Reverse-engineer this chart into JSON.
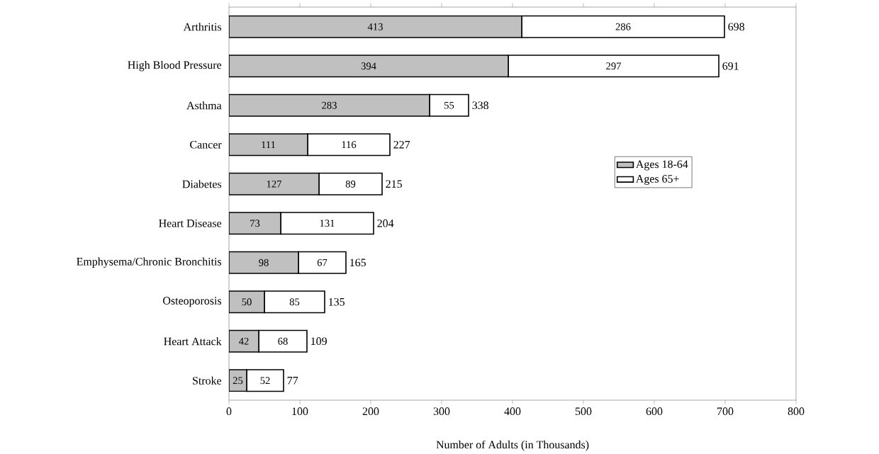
{
  "chart_data": {
    "type": "bar",
    "orientation": "horizontal",
    "stacked": true,
    "xlabel": "Number of Adults (in Thousands)",
    "categories": [
      "Arthritis",
      "High Blood Pressure",
      "Asthma",
      "Cancer",
      "Diabetes",
      "Heart Disease",
      "Emphysema/Chronic Bronchitis",
      "Osteoporosis",
      "Heart Attack",
      "Stroke"
    ],
    "series": [
      {
        "name": "Ages 18-64",
        "color": "#c0c0c0",
        "values": [
          413,
          394,
          283,
          111,
          127,
          73,
          98,
          50,
          42,
          25
        ]
      },
      {
        "name": "Ages 65+",
        "color": "#ffffff",
        "values": [
          286,
          297,
          55,
          116,
          89,
          131,
          67,
          85,
          68,
          52
        ]
      }
    ],
    "totals": [
      "698",
      "691",
      "338",
      "227",
      "215",
      "204",
      "165",
      "135",
      "109",
      "77"
    ],
    "data_labels": true,
    "xlim": [
      0,
      800
    ],
    "xticks": [
      0,
      100,
      200,
      300,
      400,
      500,
      600,
      700,
      800
    ],
    "grid": false,
    "legend": "right"
  }
}
